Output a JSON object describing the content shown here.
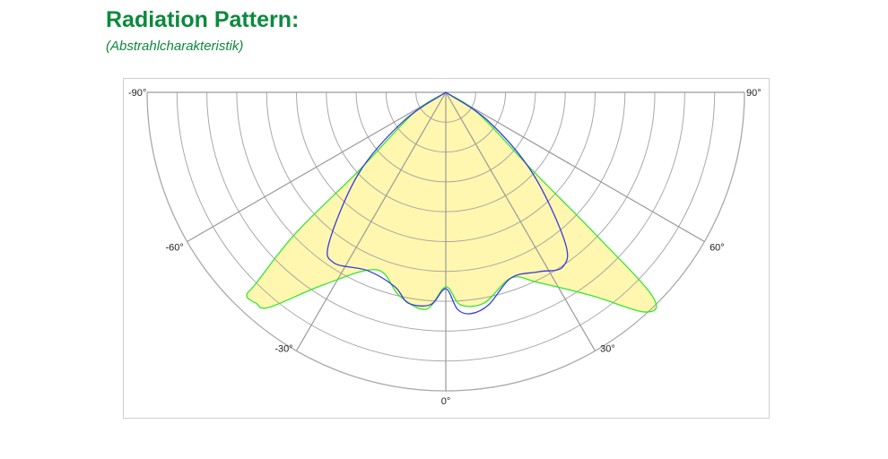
{
  "header": {
    "title": "Radiation Pattern:",
    "subtitle": "(Abstrahlcharakteristik)"
  },
  "chart_data": {
    "type": "polar",
    "angle_unit": "degrees",
    "angle_range": [
      -90,
      90
    ],
    "angle_ticks": [
      -90,
      -60,
      -30,
      0,
      30,
      60,
      90
    ],
    "angle_tick_labels": [
      "-90°",
      "-60°",
      "-30°",
      "0°",
      "30°",
      "60°",
      "90°"
    ],
    "radial_rings": 10,
    "radial_range": [
      0,
      10
    ],
    "grid": true,
    "colors": {
      "outer_line": "#33e633",
      "outer_fill": "#fff6a6",
      "inner_line": "#3a3ae0",
      "grid": "#9a9a9a"
    },
    "series": [
      {
        "color": "#33e633",
        "filled": true,
        "points": [
          [
            -57,
            1.3
          ],
          [
            -48,
            3.9
          ],
          [
            -46.8,
            6.9
          ],
          [
            -44.8,
            9.0
          ],
          [
            -44.4,
            9.53
          ],
          [
            -42,
            9.5
          ],
          [
            -39.4,
            9.32
          ],
          [
            -32.5,
            7.65
          ],
          [
            -21.3,
            6.38
          ],
          [
            -12.9,
            6.99
          ],
          [
            -5.2,
            7.3
          ],
          [
            0,
            6.52
          ],
          [
            3.9,
            7.13
          ],
          [
            10.4,
            7.17
          ],
          [
            19.4,
            6.59
          ],
          [
            25.9,
            7.08
          ],
          [
            35.7,
            8.39
          ],
          [
            42.3,
            9.95
          ],
          [
            45.4,
            9.7
          ],
          [
            46.5,
            6.9
          ],
          [
            48,
            3.9
          ],
          [
            57,
            1.3
          ]
        ]
      },
      {
        "color": "#3a3ae0",
        "filled": false,
        "points": [
          [
            -55.8,
            1.7
          ],
          [
            -47.1,
            3.97
          ],
          [
            -37.9,
            6.35
          ],
          [
            -33.3,
            6.83
          ],
          [
            -23.6,
            6.52
          ],
          [
            -14.7,
            6.73
          ],
          [
            -10.1,
            7.17
          ],
          [
            -4.1,
            7.13
          ],
          [
            0,
            6.58
          ],
          [
            3.1,
            7.28
          ],
          [
            6.5,
            7.46
          ],
          [
            11.4,
            7.26
          ],
          [
            19.4,
            6.59
          ],
          [
            27.2,
            6.76
          ],
          [
            33.7,
            7.04
          ],
          [
            38.5,
            6.41
          ],
          [
            47,
            3.97
          ],
          [
            56,
            1.7
          ]
        ]
      }
    ]
  }
}
